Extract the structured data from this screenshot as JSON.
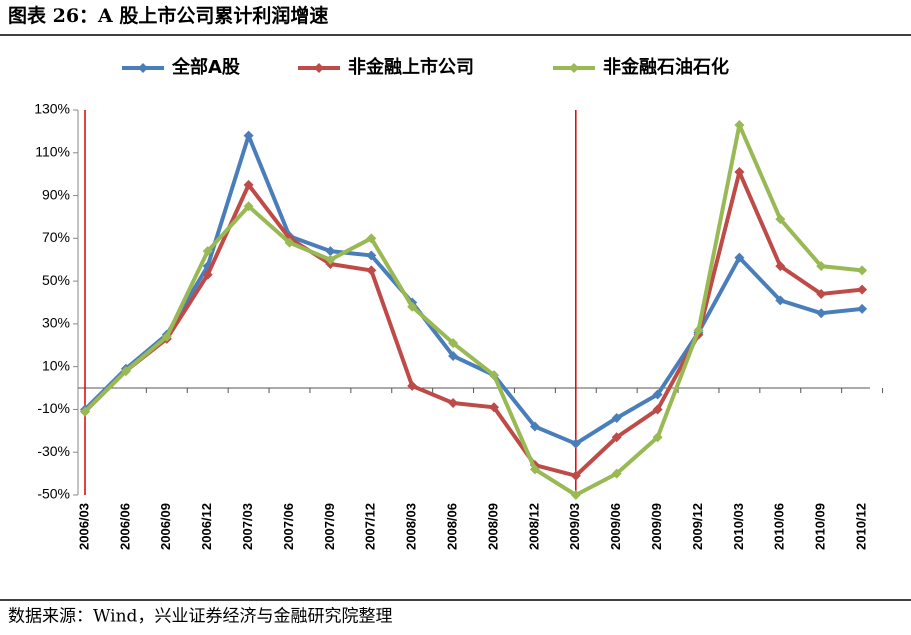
{
  "chart_data": {
    "type": "line",
    "title": "图表 26：A 股上市公司累计利润增速",
    "source": "数据来源：Wind，兴业证券经济与金融研究院整理",
    "categories": [
      "2006/03",
      "2006/06",
      "2006/09",
      "2006/12",
      "2007/03",
      "2007/06",
      "2007/09",
      "2007/12",
      "2008/03",
      "2008/06",
      "2008/09",
      "2008/12",
      "2009/03",
      "2009/06",
      "2009/09",
      "2009/12",
      "2010/03",
      "2010/06",
      "2010/09",
      "2010/12"
    ],
    "series": [
      {
        "name": "全部A股",
        "color": "#4a7ebb",
        "values": [
          -10,
          9,
          25,
          57,
          118,
          71,
          64,
          62,
          40,
          15,
          6,
          -18,
          -26,
          -14,
          -3,
          26,
          61,
          41,
          35,
          37
        ]
      },
      {
        "name": "非金融上市公司",
        "color": "#be4b48",
        "values": [
          -11,
          8,
          23,
          53,
          95,
          70,
          58,
          55,
          1,
          -7,
          -9,
          -36,
          -41,
          -23,
          -10,
          25,
          101,
          57,
          44,
          46
        ]
      },
      {
        "name": "非金融石油石化",
        "color": "#98b954",
        "values": [
          -11,
          8,
          24,
          64,
          85,
          68,
          60,
          70,
          38,
          21,
          6,
          -38,
          -50,
          -40,
          -23,
          27,
          123,
          79,
          57,
          55
        ]
      }
    ],
    "ylim": [
      -50,
      130
    ],
    "yticks": [
      {
        "value": -50,
        "label": "-50%"
      },
      {
        "value": -30,
        "label": "-30%"
      },
      {
        "value": -10,
        "label": "-10%"
      },
      {
        "value": 10,
        "label": "10%"
      },
      {
        "value": 30,
        "label": "30%"
      },
      {
        "value": 50,
        "label": "50%"
      },
      {
        "value": 70,
        "label": "70%"
      },
      {
        "value": 90,
        "label": "90%"
      },
      {
        "value": 110,
        "label": "110%"
      },
      {
        "value": 130,
        "label": "130%"
      }
    ],
    "reference_lines": [
      "2006/03",
      "2009/03"
    ],
    "reference_color": "#e00000",
    "legend": "top",
    "grid": false
  }
}
